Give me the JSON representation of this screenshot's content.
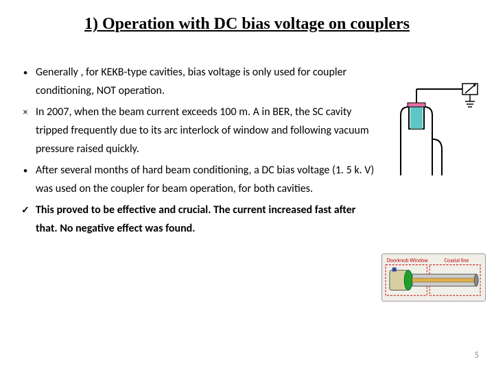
{
  "title": {
    "text": "1) Operation with DC bias voltage on couplers",
    "fontsize": 24,
    "color": "#000000"
  },
  "body": {
    "fontsize": 16,
    "lineheight": 27,
    "bullets": [
      {
        "marker": "●",
        "text": "Generally , for KEKB-type cavities, bias voltage is only used for coupler conditioning, NOT operation.",
        "bold": false
      },
      {
        "marker": "×",
        "text": "In 2007, when the beam current exceeds 100 m. A in BER, the SC cavity tripped frequently due to its arc interlock of window and following vacuum pressure raised quickly.",
        "bold": false
      },
      {
        "marker": "●",
        "text": "After several months of hard beam conditioning,  a DC bias voltage (1. 5 k. V) was used on the  coupler for beam operation, for both cavities.",
        "bold": false
      },
      {
        "marker": "✓",
        "text": "This proved to be effective and crucial. The current increased fast after that.  No negative effect was found.",
        "bold": true
      }
    ]
  },
  "diagram1": {
    "stroke": "#000000",
    "cavity_fill": "#5fc6c6",
    "flange_fill": "#e36fa8",
    "stroke_width": 2
  },
  "diagram2": {
    "bg": "#f0efe8",
    "border": "#999999",
    "label_left": "Doorknob Window",
    "label_right": "Coaxial line",
    "label_color": "#c00000",
    "doorknob_fill": "#d8cfa0",
    "disk_fill": "#22a022",
    "axis_fill": "#cccccc",
    "dash_color": "#c00000"
  },
  "pagenum": "5"
}
